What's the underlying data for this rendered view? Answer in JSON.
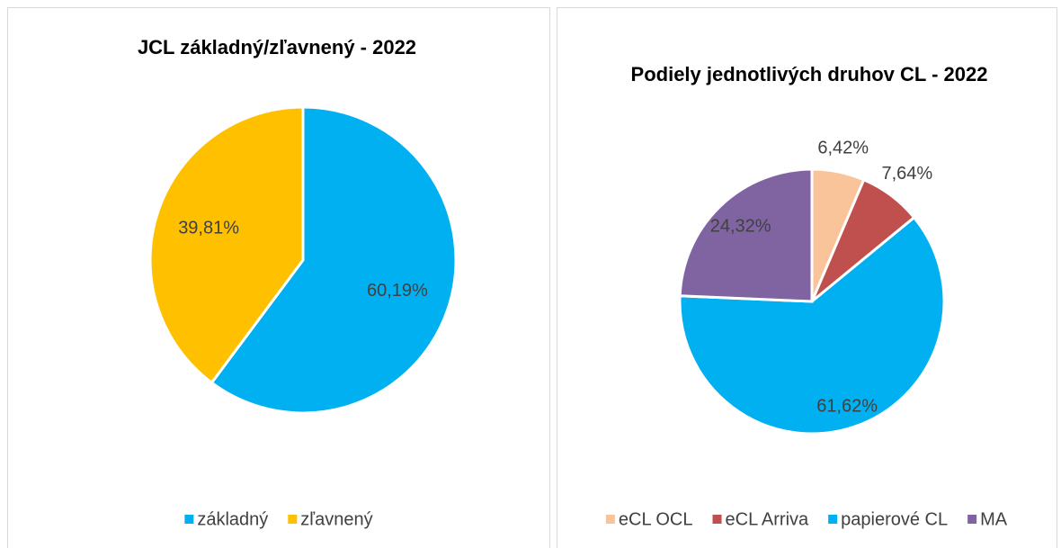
{
  "chart_data": [
    {
      "type": "pie",
      "title": "JCL základný/zľavnený - 2022",
      "categories": [
        "základný",
        "zľavnený"
      ],
      "values": [
        60.19,
        39.81
      ],
      "value_labels": [
        "60,19%",
        "39,81%"
      ],
      "colors": [
        "#00b0f0",
        "#ffc000"
      ],
      "legend": "bottom"
    },
    {
      "type": "pie",
      "title": "Podiely jednotlivých druhov CL - 2022",
      "categories": [
        "eCL OCL",
        "eCL Arriva",
        "papierové CL",
        "MA"
      ],
      "values": [
        6.42,
        7.64,
        61.62,
        24.32
      ],
      "value_labels": [
        "6,42%",
        "7,64%",
        "61,62%",
        "24,32%"
      ],
      "colors": [
        "#f9c499",
        "#c0504d",
        "#00b0f0",
        "#8064a2"
      ],
      "legend": "bottom"
    }
  ]
}
